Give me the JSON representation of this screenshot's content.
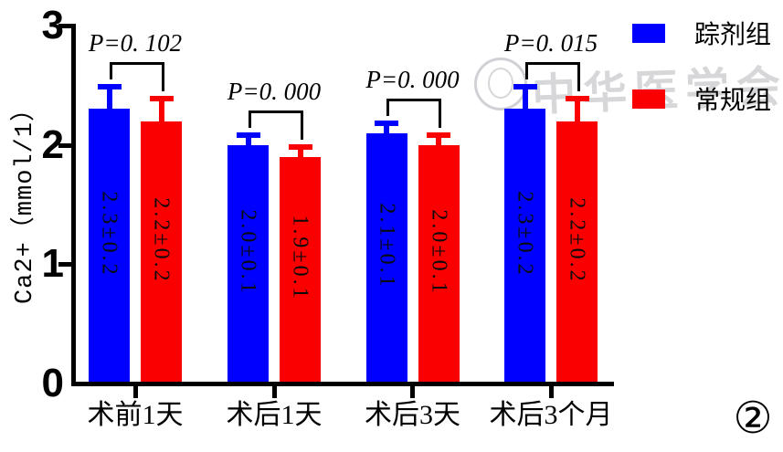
{
  "figure": {
    "number_badge": "②"
  },
  "watermark": {
    "text": "中华医学会"
  },
  "chart_data": {
    "type": "bar",
    "ylabel": "Ca2+（mmol/1）",
    "categories": [
      "术前1天",
      "术后1天",
      "术后3天",
      "术后3个月"
    ],
    "series": [
      {
        "name": "踪剂组",
        "color": "#0000fe",
        "values": [
          2.3,
          2.0,
          2.1,
          2.3
        ],
        "sd": [
          0.2,
          0.1,
          0.1,
          0.2
        ],
        "bar_labels": [
          "2.3±0.2",
          "2.0±0.1",
          "2.1±0.1",
          "2.3±0.2"
        ]
      },
      {
        "name": "常规组",
        "color": "#fb0000",
        "values": [
          2.2,
          1.9,
          2.0,
          2.2
        ],
        "sd": [
          0.2,
          0.1,
          0.1,
          0.2
        ],
        "bar_labels": [
          "2.2±0.2",
          "1.9±0.1",
          "2.0±0.1",
          "2.2±0.2"
        ]
      }
    ],
    "p_values": [
      "P=0. 102",
      "P=0. 000",
      "P=0. 000",
      "P=0. 015"
    ],
    "ylim": [
      0,
      3
    ],
    "yticks": [
      "0",
      "1",
      "2",
      "3"
    ],
    "error_bars": "upper-sd-caps",
    "legend_position": "top-right",
    "grid": false,
    "axis_color": "#000000"
  }
}
